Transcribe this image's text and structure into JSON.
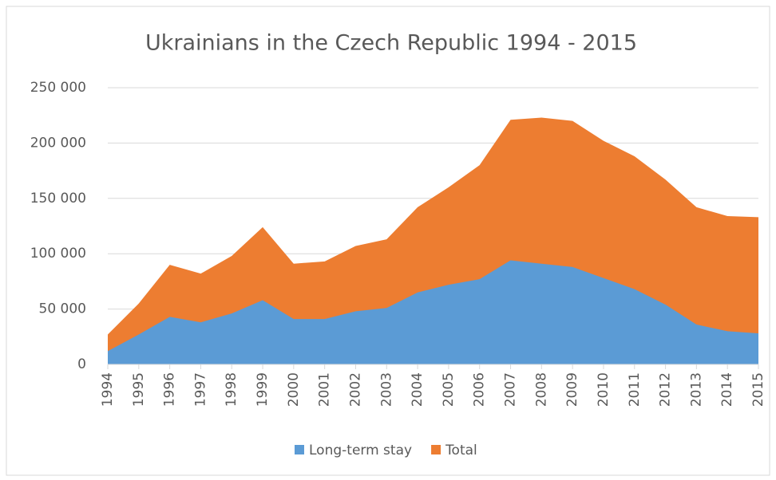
{
  "chart_data": {
    "type": "area",
    "title": "Ukrainians in the Czech Republic 1994 - 2015",
    "categories": [
      "1994",
      "1995",
      "1996",
      "1997",
      "1998",
      "1999",
      "2000",
      "2001",
      "2002",
      "2003",
      "2004",
      "2005",
      "2006",
      "2007",
      "2008",
      "2009",
      "2010",
      "2011",
      "2012",
      "2013",
      "2014",
      "2015"
    ],
    "series": [
      {
        "name": "Long-term stay",
        "color": "#5b9bd5",
        "values": [
          12000,
          27000,
          43000,
          38000,
          46000,
          58000,
          41000,
          41000,
          48000,
          51000,
          65000,
          72000,
          77000,
          94000,
          91000,
          88000,
          78000,
          68000,
          54000,
          36000,
          30000,
          28000
        ]
      },
      {
        "name": "Total",
        "color": "#ed7d31",
        "values": [
          27000,
          55000,
          90000,
          82000,
          98000,
          124000,
          91000,
          93000,
          107000,
          113000,
          142000,
          160000,
          180000,
          221000,
          223000,
          220000,
          202000,
          188000,
          167000,
          142000,
          134000,
          133000
        ]
      }
    ],
    "ylim": [
      0,
      250000
    ],
    "yticks": [
      0,
      {
        "value": 50000,
        "label": "50 000"
      },
      {
        "value": 100000,
        "label": "100 000"
      },
      {
        "value": 150000,
        "label": "150 000"
      },
      {
        "value": 200000,
        "label": "200 000"
      },
      {
        "value": 250000,
        "label": "250 000"
      }
    ],
    "grid": true,
    "legend": "bottom"
  }
}
